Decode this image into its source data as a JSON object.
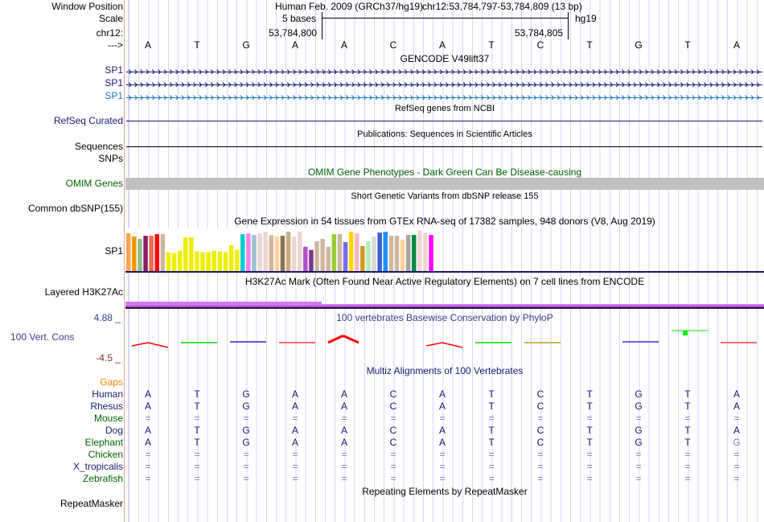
{
  "header": {
    "window_position_label": "Window Position",
    "scale_label": "Scale",
    "chrom_label": "chr12:",
    "strand_label": "--->",
    "assembly_title": "Human Feb. 2009 (GRCh37/hg19)",
    "position_range": "chr12:53,784,797-53,784,809 (13 bp)",
    "scale_text": "5 bases",
    "scale_db": "hg19",
    "coord_left": "53,784,800",
    "coord_right": "53,784,805"
  },
  "sequence": [
    "A",
    "T",
    "G",
    "A",
    "A",
    "C",
    "A",
    "T",
    "C",
    "T",
    "G",
    "T",
    "A"
  ],
  "tracks": {
    "gencode": {
      "title": "GENCODE V49lift37",
      "items": [
        {
          "label": "SP1",
          "color": "#191970"
        },
        {
          "label": "SP1",
          "color": "#191970"
        },
        {
          "label": "SP1",
          "color": "#1f78b4"
        }
      ]
    },
    "refseq": {
      "title": "RefSeq genes from NCBI",
      "label": "RefSeq Curated",
      "color": "#191970"
    },
    "publications": {
      "title": "Publications: Sequences in Scientific Articles",
      "label": "Sequences"
    },
    "snps": {
      "label": "SNPs"
    },
    "omim": {
      "title": "OMIM Gene Phenotypes - Dark Green Can Be Disease-causing",
      "label": "OMIM Genes",
      "color": "#006400",
      "bar_color": "#c0c0c0"
    },
    "dbsnp": {
      "title": "Short Genetic Variants from dbSNP release 155",
      "label": "Common dbSNP(155)"
    },
    "gtex": {
      "title": "Gene Expression in 54 tissues from GTEx RNA-seq of 17382 samples, 948 donors (V8, Aug 2019)",
      "label": "SP1",
      "chart_data": {
        "type": "bar",
        "title": "Gene Expression in 54 tissues from GTEx RNA-seq of 17382 samples, 948 donors (V8, Aug 2019)",
        "values": [
          145,
          132,
          123,
          135,
          135,
          141,
          141,
          72,
          69,
          78,
          129,
          129,
          75,
          72,
          72,
          78,
          75,
          72,
          99,
          81,
          141,
          144,
          138,
          144,
          150,
          138,
          132,
          135,
          150,
          132,
          150,
          93,
          81,
          114,
          123,
          93,
          141,
          141,
          111,
          150,
          144,
          96,
          114,
          132,
          147,
          150,
          135,
          135,
          120,
          138,
          138,
          156,
          147,
          138
        ],
        "colors": [
          "#FFA54F",
          "#EE9A00",
          "#8FBC8F",
          "#8B1C62",
          "#EE6A50",
          "#FF0000",
          "#CDB79E",
          "#EEEE00",
          "#EEEE00",
          "#EEEE00",
          "#EEEE00",
          "#EEEE00",
          "#EEEE00",
          "#EEEE00",
          "#EEEE00",
          "#EEEE00",
          "#EEEE00",
          "#EEEE00",
          "#EEEE00",
          "#EEEE00",
          "#00CED1",
          "#EE82EE",
          "#9AC0CD",
          "#EED5D2",
          "#EED5D2",
          "#CDB79E",
          "#FFD39B",
          "#8B7355",
          "#CDAA7D",
          "#EED5D2",
          "#EED5D2",
          "#B452CD",
          "#7A378B",
          "#CDB79E",
          "#CDB79E",
          "#CDB79E",
          "#9ACD32",
          "#CDB79E",
          "#7B68EE",
          "#FFD700",
          "#FFB6C1",
          "#CD9B1D",
          "#B4EEB4",
          "#D9D9D9",
          "#3A5FCD",
          "#1E90FF",
          "#CDB79E",
          "#CDB79E",
          "#FFD39B",
          "#A6A6A6",
          "#008B45",
          "#EED5D2",
          "#EED5D2",
          "#FF00FF"
        ],
        "ylim": [
          0,
          160
        ]
      }
    },
    "h3k27ac": {
      "title": "H3K27Ac Mark (Often Found Near Active Regulatory Elements) on 7 cell lines from ENCODE",
      "label": "Layered H3K27Ac"
    },
    "phylop": {
      "title": "100 vertebrates Basewise Conservation by PhyloP",
      "label": "100 Vert. Cons",
      "max_label": "4.88 _",
      "min_label": "-4.5 _",
      "marks": [
        {
          "base": 0,
          "color": "#ff0000",
          "shape": "hump"
        },
        {
          "base": 1,
          "color": "#00dd00",
          "shape": "flat"
        },
        {
          "base": 2,
          "color": "#2020ee",
          "shape": "flat"
        },
        {
          "base": 3,
          "color": "#ff4040",
          "shape": "flat"
        },
        {
          "base": 4,
          "color": "#ff0000",
          "shape": "peak"
        },
        {
          "base": 6,
          "color": "#ff0000",
          "shape": "hump"
        },
        {
          "base": 7,
          "color": "#00dd00",
          "shape": "flat"
        },
        {
          "base": 8,
          "color": "#b0a020",
          "shape": "flat"
        },
        {
          "base": 10,
          "color": "#3030ee",
          "shape": "flat"
        },
        {
          "base": 11,
          "color": "#00ee00",
          "shape": "square"
        },
        {
          "base": 12,
          "color": "#ff4040",
          "shape": "flat"
        }
      ]
    },
    "multiz": {
      "title": "Multiz Alignments of 100 Vertebrates",
      "gaps_label": "Gaps",
      "species": [
        {
          "name": "Human",
          "color": "#191970",
          "seq": [
            "A",
            "T",
            "G",
            "A",
            "A",
            "C",
            "A",
            "T",
            "C",
            "T",
            "G",
            "T",
            "A"
          ]
        },
        {
          "name": "Rhesus",
          "color": "#191970",
          "seq": [
            "A",
            "T",
            "G",
            "A",
            "A",
            "C",
            "A",
            "T",
            "C",
            "T",
            "G",
            "T",
            "A"
          ]
        },
        {
          "name": "Mouse",
          "color": "#006400",
          "seq": [
            "=",
            "=",
            "=",
            "=",
            "=",
            "=",
            "=",
            "=",
            "=",
            "=",
            "=",
            "=",
            "="
          ]
        },
        {
          "name": "Dog",
          "color": "#191970",
          "seq": [
            "A",
            "T",
            "G",
            "A",
            "A",
            "C",
            "A",
            "T",
            "C",
            "T",
            "G",
            "T",
            "A"
          ]
        },
        {
          "name": "Elephant",
          "color": "#006400",
          "seq": [
            "A",
            "T",
            "G",
            "A",
            "A",
            "C",
            "A",
            "T",
            "C",
            "T",
            "G",
            "T",
            "G"
          ]
        },
        {
          "name": "Chicken",
          "color": "#006400",
          "seq": [
            "=",
            "=",
            "=",
            "=",
            "=",
            "=",
            "=",
            "=",
            "=",
            "=",
            "=",
            "=",
            "="
          ]
        },
        {
          "name": "X_tropicalis",
          "color": "#191970",
          "seq": [
            "=",
            "=",
            "=",
            "=",
            "=",
            "=",
            "=",
            "=",
            "=",
            "=",
            "=",
            "=",
            "="
          ]
        },
        {
          "name": "Zebrafish",
          "color": "#006400",
          "seq": [
            "=",
            "=",
            "=",
            "=",
            "=",
            "=",
            "=",
            "=",
            "=",
            "=",
            "=",
            "=",
            "="
          ]
        }
      ]
    },
    "repeatmasker": {
      "title": "Repeating Elements by RepeatMasker",
      "label": "RepeatMasker"
    }
  }
}
